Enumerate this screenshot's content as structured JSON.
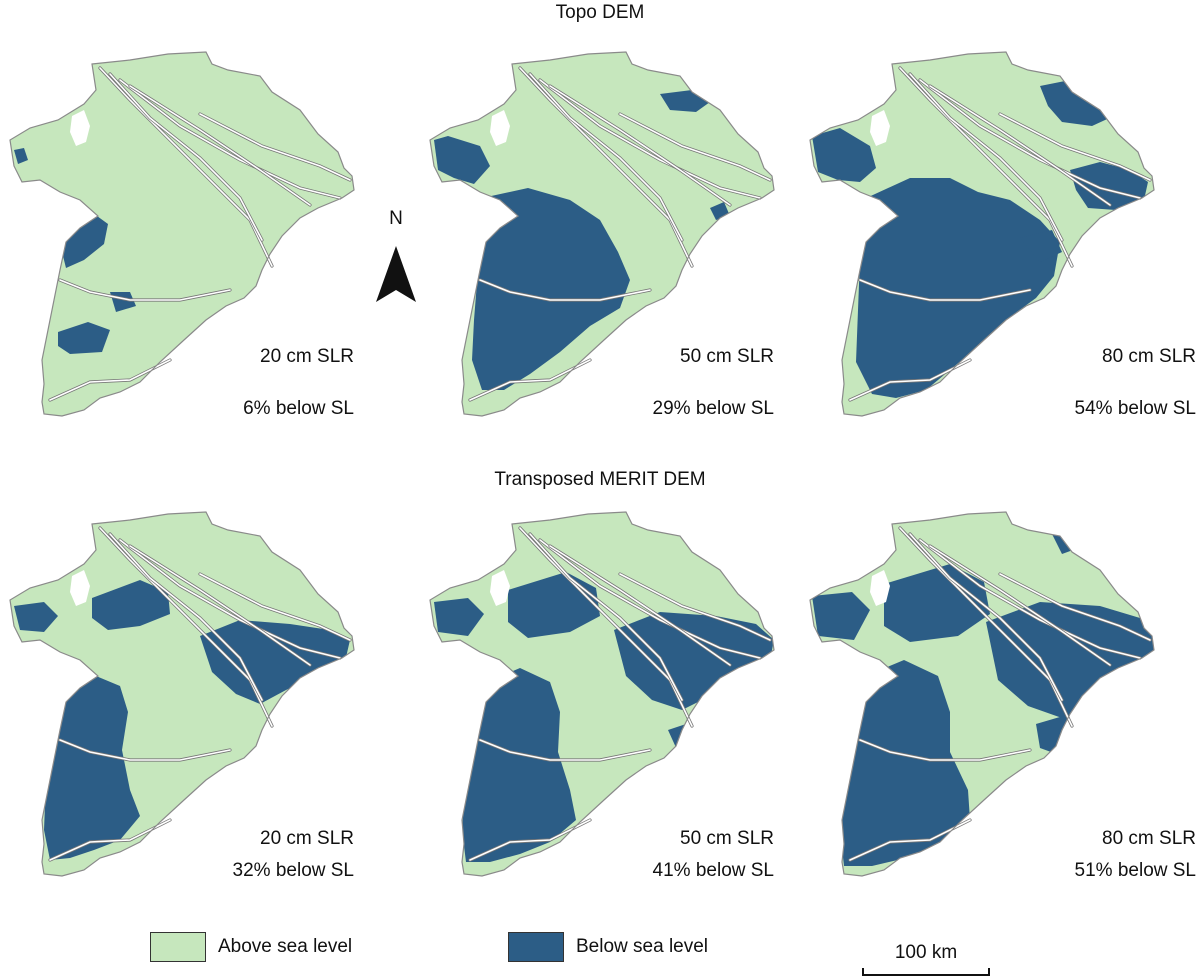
{
  "rows": [
    {
      "title": "Topo DEM",
      "panels": [
        {
          "slr": "20 cm SLR",
          "pct": "6% below SL"
        },
        {
          "slr": "50 cm SLR",
          "pct": "29% below SL"
        },
        {
          "slr": "80 cm SLR",
          "pct": "54% below SL"
        }
      ]
    },
    {
      "title": "Transposed MERIT DEM",
      "panels": [
        {
          "slr": "20 cm SLR",
          "pct": "32% below SL"
        },
        {
          "slr": "50 cm SLR",
          "pct": "41% below SL"
        },
        {
          "slr": "80 cm SLR",
          "pct": "51% below SL"
        }
      ]
    }
  ],
  "legend": {
    "above": {
      "label": "Above sea level",
      "color": "#c6e7bd"
    },
    "below": {
      "label": "Below sea level",
      "color": "#2c5d86"
    }
  },
  "north_label": "N",
  "scale_bar": "100 km",
  "colors": {
    "land": "#c6e7bd",
    "flooded": "#2c5d86",
    "outline": "#8a8a8a",
    "river": "#ffffff"
  }
}
